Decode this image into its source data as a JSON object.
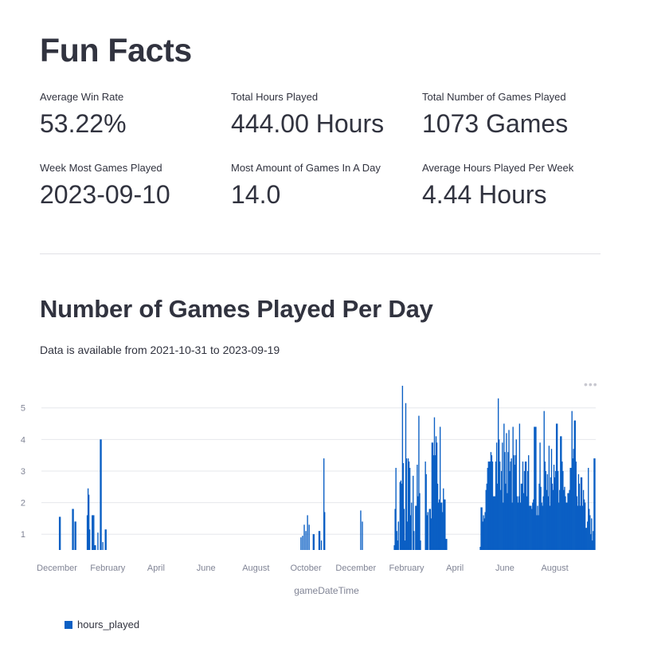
{
  "page_title": "Fun Facts",
  "metrics": [
    {
      "label": "Average Win Rate",
      "value": "53.22%"
    },
    {
      "label": "Total Hours Played",
      "value": "444.00 Hours"
    },
    {
      "label": "Total Number of Games Played",
      "value": "1073 Games"
    },
    {
      "label": "Week Most Games Played",
      "value": "2023-09-10"
    },
    {
      "label": "Most Amount of Games In A Day",
      "value": "14.0"
    },
    {
      "label": "Average Hours Played Per Week",
      "value": "4.44 Hours"
    }
  ],
  "section_title": "Number of Games Played Per Day",
  "caption": "Data is available from 2021-10-31 to 2023-09-19",
  "menu_icon": "more-horizontal-icon",
  "colors": {
    "bar": "#0a5fc4",
    "grid": "#e6e7eb",
    "axis_text": "#808495"
  },
  "chart_data": {
    "type": "bar",
    "xlabel": "gameDateTime",
    "ylabel": "",
    "legend": {
      "label": "hours_played",
      "placement": "bottom-left"
    },
    "ylim": [
      0.5,
      5.8
    ],
    "yticks": [
      1,
      2,
      3,
      4,
      5
    ],
    "x_domain": [
      "2021-11-12",
      "2023-09-20"
    ],
    "x_ticks": [
      {
        "date": "2021-12-01",
        "label": "December"
      },
      {
        "date": "2022-02-01",
        "label": "February"
      },
      {
        "date": "2022-04-01",
        "label": "April"
      },
      {
        "date": "2022-06-01",
        "label": "June"
      },
      {
        "date": "2022-08-01",
        "label": "August"
      },
      {
        "date": "2022-10-01",
        "label": "October"
      },
      {
        "date": "2022-12-01",
        "label": "December"
      },
      {
        "date": "2023-02-01",
        "label": "February"
      },
      {
        "date": "2023-04-01",
        "label": "April"
      },
      {
        "date": "2023-06-01",
        "label": "June"
      },
      {
        "date": "2023-08-01",
        "label": "August"
      }
    ],
    "series": [
      {
        "name": "hours_played",
        "points": [
          [
            "2021-12-04",
            1.55
          ],
          [
            "2021-12-05",
            1.55
          ],
          [
            "2021-12-20",
            1.8
          ],
          [
            "2021-12-21",
            1.8
          ],
          [
            "2021-12-23",
            1.4
          ],
          [
            "2021-12-24",
            1.4
          ],
          [
            "2022-01-07",
            1.6
          ],
          [
            "2022-01-08",
            2.45
          ],
          [
            "2022-01-09",
            2.25
          ],
          [
            "2022-01-10",
            1.15
          ],
          [
            "2022-01-13",
            1.6
          ],
          [
            "2022-01-14",
            1.6
          ],
          [
            "2022-01-15",
            1.6
          ],
          [
            "2022-01-16",
            0.65
          ],
          [
            "2022-01-17",
            0.65
          ],
          [
            "2022-01-20",
            1.05
          ],
          [
            "2022-01-23",
            4.0
          ],
          [
            "2022-01-24",
            4.0
          ],
          [
            "2022-01-26",
            0.75
          ],
          [
            "2022-01-29",
            1.15
          ],
          [
            "2022-01-30",
            1.15
          ],
          [
            "2022-09-25",
            0.9
          ],
          [
            "2022-09-27",
            0.95
          ],
          [
            "2022-09-29",
            1.3
          ],
          [
            "2022-10-01",
            1.1
          ],
          [
            "2022-10-03",
            1.6
          ],
          [
            "2022-10-05",
            1.3
          ],
          [
            "2022-10-10",
            1.0
          ],
          [
            "2022-10-11",
            1.0
          ],
          [
            "2022-10-17",
            1.1
          ],
          [
            "2022-10-18",
            1.1
          ],
          [
            "2022-10-20",
            0.8
          ],
          [
            "2022-10-23",
            3.4
          ],
          [
            "2022-10-24",
            1.7
          ],
          [
            "2022-12-07",
            1.75
          ],
          [
            "2022-12-09",
            1.4
          ],
          [
            "2023-01-17",
            0.65
          ],
          [
            "2023-01-18",
            1.8
          ],
          [
            "2023-01-19",
            3.1
          ],
          [
            "2023-01-20",
            1.1
          ],
          [
            "2023-01-21",
            0.8
          ],
          [
            "2023-01-22",
            1.4
          ],
          [
            "2023-01-24",
            2.65
          ],
          [
            "2023-01-25",
            2.7
          ],
          [
            "2023-01-26",
            2.6
          ],
          [
            "2023-01-27",
            5.7
          ],
          [
            "2023-01-28",
            3.25
          ],
          [
            "2023-01-29",
            1.8
          ],
          [
            "2023-01-30",
            0.8
          ],
          [
            "2023-01-31",
            5.15
          ],
          [
            "2023-02-01",
            3.4
          ],
          [
            "2023-02-02",
            1.4
          ],
          [
            "2023-02-03",
            3.4
          ],
          [
            "2023-02-04",
            3.3
          ],
          [
            "2023-02-05",
            3.1
          ],
          [
            "2023-02-06",
            1.6
          ],
          [
            "2023-02-07",
            2.0
          ],
          [
            "2023-02-09",
            2.85
          ],
          [
            "2023-02-10",
            1.1
          ],
          [
            "2023-02-12",
            1.9
          ],
          [
            "2023-02-13",
            1.9
          ],
          [
            "2023-02-14",
            3.2
          ],
          [
            "2023-02-15",
            2.2
          ],
          [
            "2023-02-16",
            4.75
          ],
          [
            "2023-02-17",
            2.3
          ],
          [
            "2023-02-18",
            0.8
          ],
          [
            "2023-02-24",
            3.3
          ],
          [
            "2023-02-25",
            2.9
          ],
          [
            "2023-02-26",
            1.6
          ],
          [
            "2023-02-27",
            1.7
          ],
          [
            "2023-03-01",
            1.8
          ],
          [
            "2023-03-02",
            1.8
          ],
          [
            "2023-03-03",
            1.5
          ],
          [
            "2023-03-04",
            3.9
          ],
          [
            "2023-03-05",
            3.9
          ],
          [
            "2023-03-06",
            3.5
          ],
          [
            "2023-03-07",
            4.7
          ],
          [
            "2023-03-08",
            3.5
          ],
          [
            "2023-03-09",
            4.1
          ],
          [
            "2023-03-10",
            3.9
          ],
          [
            "2023-03-11",
            2.6
          ],
          [
            "2023-03-12",
            2.0
          ],
          [
            "2023-03-13",
            2.1
          ],
          [
            "2023-03-14",
            4.4
          ],
          [
            "2023-03-15",
            2.0
          ],
          [
            "2023-03-16",
            2.0
          ],
          [
            "2023-03-17",
            1.7
          ],
          [
            "2023-03-18",
            2.45
          ],
          [
            "2023-03-19",
            2.1
          ],
          [
            "2023-03-20",
            2.1
          ],
          [
            "2023-03-21",
            0.85
          ],
          [
            "2023-03-22",
            0.85
          ],
          [
            "2023-05-02",
            0.6
          ],
          [
            "2023-05-03",
            1.85
          ],
          [
            "2023-05-04",
            1.85
          ],
          [
            "2023-05-05",
            1.4
          ],
          [
            "2023-05-06",
            1.6
          ],
          [
            "2023-05-07",
            1.5
          ],
          [
            "2023-05-08",
            1.7
          ],
          [
            "2023-05-09",
            2.4
          ],
          [
            "2023-05-10",
            2.6
          ],
          [
            "2023-05-11",
            3.1
          ],
          [
            "2023-05-12",
            3.3
          ],
          [
            "2023-05-13",
            3.3
          ],
          [
            "2023-05-14",
            3.3
          ],
          [
            "2023-05-15",
            3.6
          ],
          [
            "2023-05-16",
            3.5
          ],
          [
            "2023-05-17",
            3.3
          ],
          [
            "2023-05-18",
            2.2
          ],
          [
            "2023-05-19",
            2.2
          ],
          [
            "2023-05-20",
            2.2
          ],
          [
            "2023-05-21",
            3.3
          ],
          [
            "2023-05-22",
            3.9
          ],
          [
            "2023-05-23",
            2.6
          ],
          [
            "2023-05-24",
            5.3
          ],
          [
            "2023-05-25",
            4.0
          ],
          [
            "2023-05-26",
            3.3
          ],
          [
            "2023-05-27",
            2.4
          ],
          [
            "2023-05-28",
            3.0
          ],
          [
            "2023-05-29",
            3.9
          ],
          [
            "2023-05-30",
            2.0
          ],
          [
            "2023-05-31",
            4.5
          ],
          [
            "2023-06-01",
            3.6
          ],
          [
            "2023-06-02",
            2.6
          ],
          [
            "2023-06-03",
            4.2
          ],
          [
            "2023-06-04",
            2.3
          ],
          [
            "2023-06-05",
            3.6
          ],
          [
            "2023-06-06",
            4.3
          ],
          [
            "2023-06-07",
            3.0
          ],
          [
            "2023-06-08",
            3.3
          ],
          [
            "2023-06-09",
            3.4
          ],
          [
            "2023-06-10",
            2.0
          ],
          [
            "2023-06-11",
            4.4
          ],
          [
            "2023-06-12",
            3.5
          ],
          [
            "2023-06-13",
            3.2
          ],
          [
            "2023-06-14",
            3.5
          ],
          [
            "2023-06-15",
            4.0
          ],
          [
            "2023-06-16",
            2.2
          ],
          [
            "2023-06-17",
            2.0
          ],
          [
            "2023-06-18",
            2.2
          ],
          [
            "2023-06-19",
            4.5
          ],
          [
            "2023-06-20",
            2.0
          ],
          [
            "2023-06-21",
            2.6
          ],
          [
            "2023-06-22",
            2.6
          ],
          [
            "2023-06-23",
            3.3
          ],
          [
            "2023-06-24",
            2.3
          ],
          [
            "2023-06-25",
            3.0
          ],
          [
            "2023-06-26",
            3.3
          ],
          [
            "2023-06-27",
            3.3
          ],
          [
            "2023-06-28",
            2.2
          ],
          [
            "2023-06-29",
            3.0
          ],
          [
            "2023-06-30",
            3.5
          ],
          [
            "2023-07-01",
            1.9
          ],
          [
            "2023-07-02",
            1.9
          ],
          [
            "2023-07-03",
            1.9
          ],
          [
            "2023-07-04",
            1.8
          ],
          [
            "2023-07-05",
            2.0
          ],
          [
            "2023-07-06",
            2.1
          ],
          [
            "2023-07-07",
            4.4
          ],
          [
            "2023-07-08",
            4.4
          ],
          [
            "2023-07-09",
            4.4
          ],
          [
            "2023-07-10",
            1.6
          ],
          [
            "2023-07-11",
            1.9
          ],
          [
            "2023-07-12",
            1.6
          ],
          [
            "2023-07-13",
            2.6
          ],
          [
            "2023-07-14",
            3.9
          ],
          [
            "2023-07-15",
            2.5
          ],
          [
            "2023-07-16",
            2.0
          ],
          [
            "2023-07-17",
            1.9
          ],
          [
            "2023-07-18",
            2.2
          ],
          [
            "2023-07-19",
            4.9
          ],
          [
            "2023-07-20",
            3.3
          ],
          [
            "2023-07-21",
            3.0
          ],
          [
            "2023-07-22",
            2.4
          ],
          [
            "2023-07-23",
            2.9
          ],
          [
            "2023-07-24",
            2.2
          ],
          [
            "2023-07-25",
            3.8
          ],
          [
            "2023-07-26",
            1.9
          ],
          [
            "2023-07-27",
            2.8
          ],
          [
            "2023-07-28",
            3.7
          ],
          [
            "2023-07-29",
            2.6
          ],
          [
            "2023-07-30",
            2.4
          ],
          [
            "2023-07-31",
            3.2
          ],
          [
            "2023-08-01",
            2.8
          ],
          [
            "2023-08-02",
            3.0
          ],
          [
            "2023-08-03",
            4.5
          ],
          [
            "2023-08-04",
            4.5
          ],
          [
            "2023-08-05",
            3.0
          ],
          [
            "2023-08-06",
            2.0
          ],
          [
            "2023-08-07",
            2.4
          ],
          [
            "2023-08-08",
            4.1
          ],
          [
            "2023-08-09",
            4.1
          ],
          [
            "2023-08-10",
            3.3
          ],
          [
            "2023-08-11",
            3.0
          ],
          [
            "2023-08-12",
            2.4
          ],
          [
            "2023-08-13",
            2.5
          ],
          [
            "2023-08-14",
            2.2
          ],
          [
            "2023-08-15",
            2.0
          ],
          [
            "2023-08-16",
            2.0
          ],
          [
            "2023-08-17",
            2.3
          ],
          [
            "2023-08-18",
            2.3
          ],
          [
            "2023-08-19",
            2.4
          ],
          [
            "2023-08-20",
            3.1
          ],
          [
            "2023-08-21",
            3.1
          ],
          [
            "2023-08-22",
            4.9
          ],
          [
            "2023-08-23",
            3.4
          ],
          [
            "2023-08-24",
            3.7
          ],
          [
            "2023-08-25",
            4.6
          ],
          [
            "2023-08-26",
            4.6
          ],
          [
            "2023-08-27",
            3.3
          ],
          [
            "2023-08-28",
            2.2
          ],
          [
            "2023-08-29",
            1.9
          ],
          [
            "2023-08-30",
            2.9
          ],
          [
            "2023-08-31",
            2.6
          ],
          [
            "2023-09-01",
            1.9
          ],
          [
            "2023-09-02",
            2.8
          ],
          [
            "2023-09-03",
            2.8
          ],
          [
            "2023-09-04",
            1.9
          ],
          [
            "2023-09-05",
            2.4
          ],
          [
            "2023-09-06",
            2.1
          ],
          [
            "2023-09-07",
            2.0
          ],
          [
            "2023-09-08",
            1.2
          ],
          [
            "2023-09-09",
            1.2
          ],
          [
            "2023-09-10",
            1.4
          ],
          [
            "2023-09-11",
            3.1
          ],
          [
            "2023-09-12",
            1.8
          ],
          [
            "2023-09-13",
            1.6
          ],
          [
            "2023-09-14",
            1.0
          ],
          [
            "2023-09-15",
            1.5
          ],
          [
            "2023-09-16",
            0.8
          ],
          [
            "2023-09-17",
            1.1
          ],
          [
            "2023-09-18",
            3.4
          ],
          [
            "2023-09-19",
            3.4
          ]
        ]
      }
    ]
  }
}
